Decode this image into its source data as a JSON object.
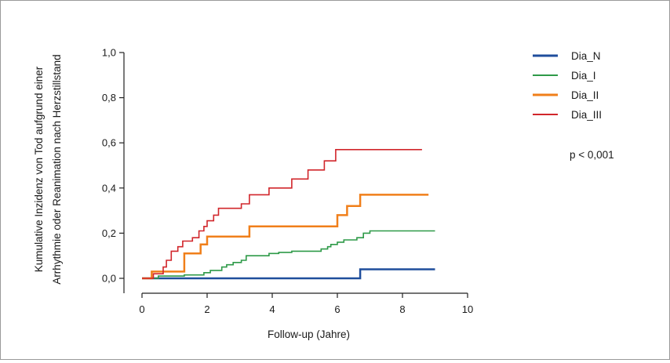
{
  "chart_data": {
    "type": "line",
    "step": true,
    "title": "",
    "xlabel": "Follow-up (Jahre)",
    "ylabel": [
      "Kumulative Inzidenz von Tod aufgrund einer",
      "Arrhythmie oder Reanimation nach Herzstillstand"
    ],
    "xlim": [
      0,
      10
    ],
    "ylim": [
      0,
      1
    ],
    "xticks": [
      "0",
      "2",
      "4",
      "6",
      "8",
      "10"
    ],
    "yticks": [
      "0,0",
      "0,2",
      "0,4",
      "0,6",
      "0,8",
      "1,0"
    ],
    "grid": false,
    "legend_position": "top-right",
    "annotation": "p < 0,001",
    "series": [
      {
        "name": "Dia_N",
        "color": "#1f4e9c",
        "width": 2.5,
        "points": [
          [
            0,
            0
          ],
          [
            6.7,
            0.04
          ],
          [
            9.0,
            0.04
          ]
        ]
      },
      {
        "name": "Dia_I",
        "color": "#2e9a48",
        "width": 1.6,
        "points": [
          [
            0,
            0
          ],
          [
            0.5,
            0.01
          ],
          [
            1.3,
            0.015
          ],
          [
            1.9,
            0.025
          ],
          [
            2.1,
            0.035
          ],
          [
            2.45,
            0.05
          ],
          [
            2.6,
            0.06
          ],
          [
            2.8,
            0.07
          ],
          [
            3.05,
            0.08
          ],
          [
            3.2,
            0.1
          ],
          [
            3.9,
            0.11
          ],
          [
            4.2,
            0.115
          ],
          [
            4.6,
            0.12
          ],
          [
            5.5,
            0.13
          ],
          [
            5.7,
            0.14
          ],
          [
            5.8,
            0.15
          ],
          [
            6.0,
            0.16
          ],
          [
            6.2,
            0.17
          ],
          [
            6.6,
            0.18
          ],
          [
            6.8,
            0.2
          ],
          [
            7.0,
            0.21
          ],
          [
            9.0,
            0.21
          ]
        ]
      },
      {
        "name": "Dia_II",
        "color": "#f07f1a",
        "width": 2.5,
        "points": [
          [
            0,
            0
          ],
          [
            0.3,
            0.03
          ],
          [
            1.3,
            0.11
          ],
          [
            1.8,
            0.15
          ],
          [
            2.0,
            0.185
          ],
          [
            3.3,
            0.23
          ],
          [
            6.0,
            0.28
          ],
          [
            6.3,
            0.32
          ],
          [
            6.7,
            0.37
          ],
          [
            8.8,
            0.37
          ]
        ]
      },
      {
        "name": "Dia_III",
        "color": "#d1262b",
        "width": 1.6,
        "points": [
          [
            0,
            0
          ],
          [
            0.35,
            0.02
          ],
          [
            0.65,
            0.05
          ],
          [
            0.75,
            0.08
          ],
          [
            0.9,
            0.12
          ],
          [
            1.1,
            0.14
          ],
          [
            1.25,
            0.165
          ],
          [
            1.55,
            0.18
          ],
          [
            1.75,
            0.21
          ],
          [
            1.9,
            0.23
          ],
          [
            2.0,
            0.255
          ],
          [
            2.2,
            0.28
          ],
          [
            2.35,
            0.31
          ],
          [
            3.05,
            0.33
          ],
          [
            3.3,
            0.37
          ],
          [
            3.9,
            0.4
          ],
          [
            4.6,
            0.44
          ],
          [
            5.1,
            0.48
          ],
          [
            5.6,
            0.52
          ],
          [
            5.95,
            0.57
          ],
          [
            8.6,
            0.57
          ]
        ]
      }
    ]
  }
}
